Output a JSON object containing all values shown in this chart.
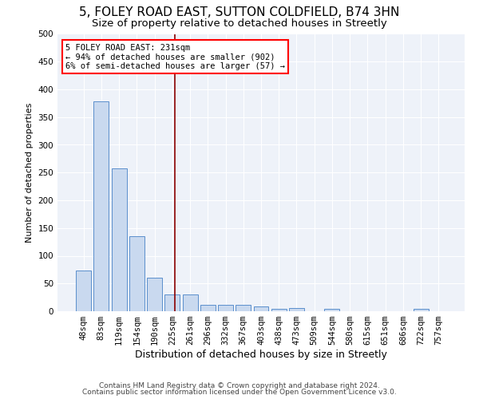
{
  "title1": "5, FOLEY ROAD EAST, SUTTON COLDFIELD, B74 3HN",
  "title2": "Size of property relative to detached houses in Streetly",
  "xlabel": "Distribution of detached houses by size in Streetly",
  "ylabel": "Number of detached properties",
  "categories": [
    "48sqm",
    "83sqm",
    "119sqm",
    "154sqm",
    "190sqm",
    "225sqm",
    "261sqm",
    "296sqm",
    "332sqm",
    "367sqm",
    "403sqm",
    "438sqm",
    "473sqm",
    "509sqm",
    "544sqm",
    "580sqm",
    "615sqm",
    "651sqm",
    "686sqm",
    "722sqm",
    "757sqm"
  ],
  "values": [
    73,
    378,
    258,
    135,
    61,
    30,
    30,
    11,
    11,
    11,
    8,
    5,
    6,
    0,
    5,
    0,
    0,
    0,
    0,
    5,
    0
  ],
  "bar_color": "#c9d9ef",
  "bar_edge_color": "#5a8fcc",
  "vline_x": 5.15,
  "vline_color": "#8b0000",
  "annotation_text": "5 FOLEY ROAD EAST: 231sqm\n← 94% of detached houses are smaller (902)\n6% of semi-detached houses are larger (57) →",
  "annotation_box_color": "red",
  "ylim": [
    0,
    500
  ],
  "yticks": [
    0,
    50,
    100,
    150,
    200,
    250,
    300,
    350,
    400,
    450,
    500
  ],
  "footer1": "Contains HM Land Registry data © Crown copyright and database right 2024.",
  "footer2": "Contains public sector information licensed under the Open Government Licence v3.0.",
  "background_color": "#eef2f9",
  "grid_color": "#ffffff",
  "title1_fontsize": 11,
  "title2_fontsize": 9.5,
  "xlabel_fontsize": 9,
  "ylabel_fontsize": 8,
  "tick_fontsize": 7.5,
  "footer_fontsize": 6.5
}
